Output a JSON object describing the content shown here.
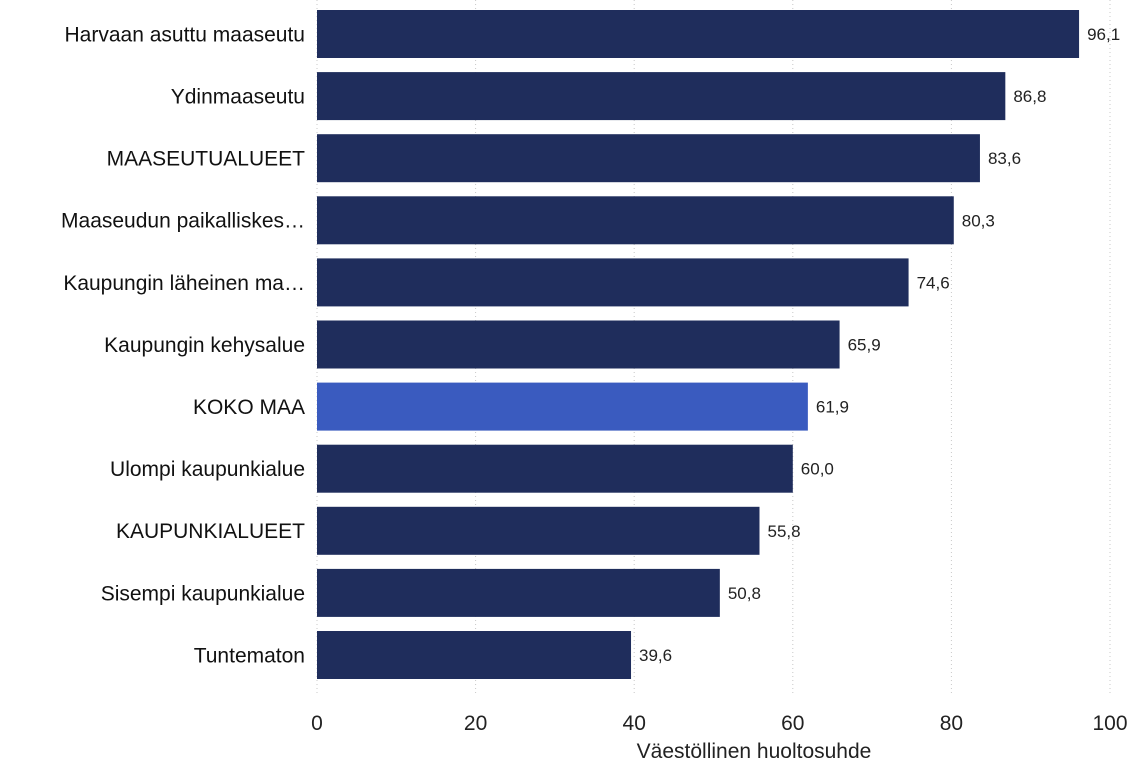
{
  "chart_data": {
    "type": "bar",
    "orientation": "horizontal",
    "categories": [
      "Harvaan asuttu maaseutu",
      "Ydinmaaseutu",
      "MAASEUTUALUEET",
      "Maaseudun paikalliskes…",
      "Kaupungin läheinen ma…",
      "Kaupungin kehysalue",
      "KOKO MAA",
      "Ulompi kaupunkialue",
      "KAUPUNKIALUEET",
      "Sisempi kaupunkialue",
      "Tuntematon"
    ],
    "values": [
      96.1,
      86.8,
      83.6,
      80.3,
      74.6,
      65.9,
      61.9,
      60.0,
      55.8,
      50.8,
      39.6
    ],
    "value_labels": [
      "96,1",
      "86,8",
      "83,6",
      "80,3",
      "74,6",
      "65,9",
      "61,9",
      "60,0",
      "55,8",
      "50,8",
      "39,6"
    ],
    "highlight_category": "KOKO MAA",
    "xlabel": "Väestöllinen huoltosuhde",
    "ylabel": "",
    "xlim": [
      0,
      100
    ],
    "xticks": [
      0,
      20,
      40,
      60,
      80,
      100
    ],
    "grid": "vertical dotted",
    "legend": "none",
    "colors": {
      "bar": "#1f2d5c",
      "highlight": "#3a5bbf"
    }
  }
}
